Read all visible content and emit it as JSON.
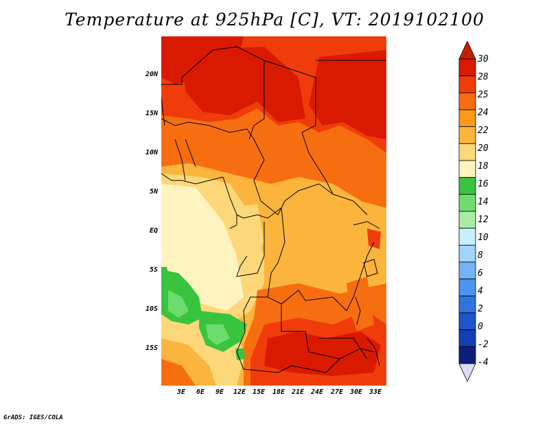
{
  "title": "Temperature at 925hPa [C], VT: 2019102100",
  "footer": "GrADS: IGES/COLA",
  "latitude_labels": [
    "20N",
    "15N",
    "10N",
    "5N",
    "EQ",
    "5S",
    "10S",
    "15S"
  ],
  "longitude_labels": [
    "3E",
    "6E",
    "9E",
    "12E",
    "15E",
    "18E",
    "21E",
    "24E",
    "27E",
    "30E",
    "33E"
  ],
  "colorbar": {
    "levels": [
      "30",
      "28",
      "25",
      "24",
      "22",
      "20",
      "18",
      "16",
      "14",
      "12",
      "10",
      "8",
      "6",
      "4",
      "2",
      "0",
      "-2",
      "-4"
    ],
    "colors": [
      "#d91a00",
      "#f03c0a",
      "#f76e10",
      "#fa9a18",
      "#fcb53c",
      "#fdd87a",
      "#fff4c0",
      "#39c43f",
      "#6fdc6f",
      "#a8eca3",
      "#c8f0ff",
      "#9fd4fc",
      "#72b4f5",
      "#4a95ee",
      "#2f74e0",
      "#1e55cc",
      "#123fb2",
      "#0b1f7a"
    ],
    "top_arrow_color": "#c81e00",
    "bottom_arrow_color": "#dcdcf5"
  },
  "colors": {
    "deep_red": "#d91a00",
    "red_orange": "#f03c0a",
    "orange": "#f76e10",
    "light_orange": "#fa9a18",
    "amber": "#fcb53c",
    "light_amber": "#fdd87a",
    "cream": "#fff4c0",
    "green": "#39c43f",
    "light_green": "#6fdc6f"
  }
}
